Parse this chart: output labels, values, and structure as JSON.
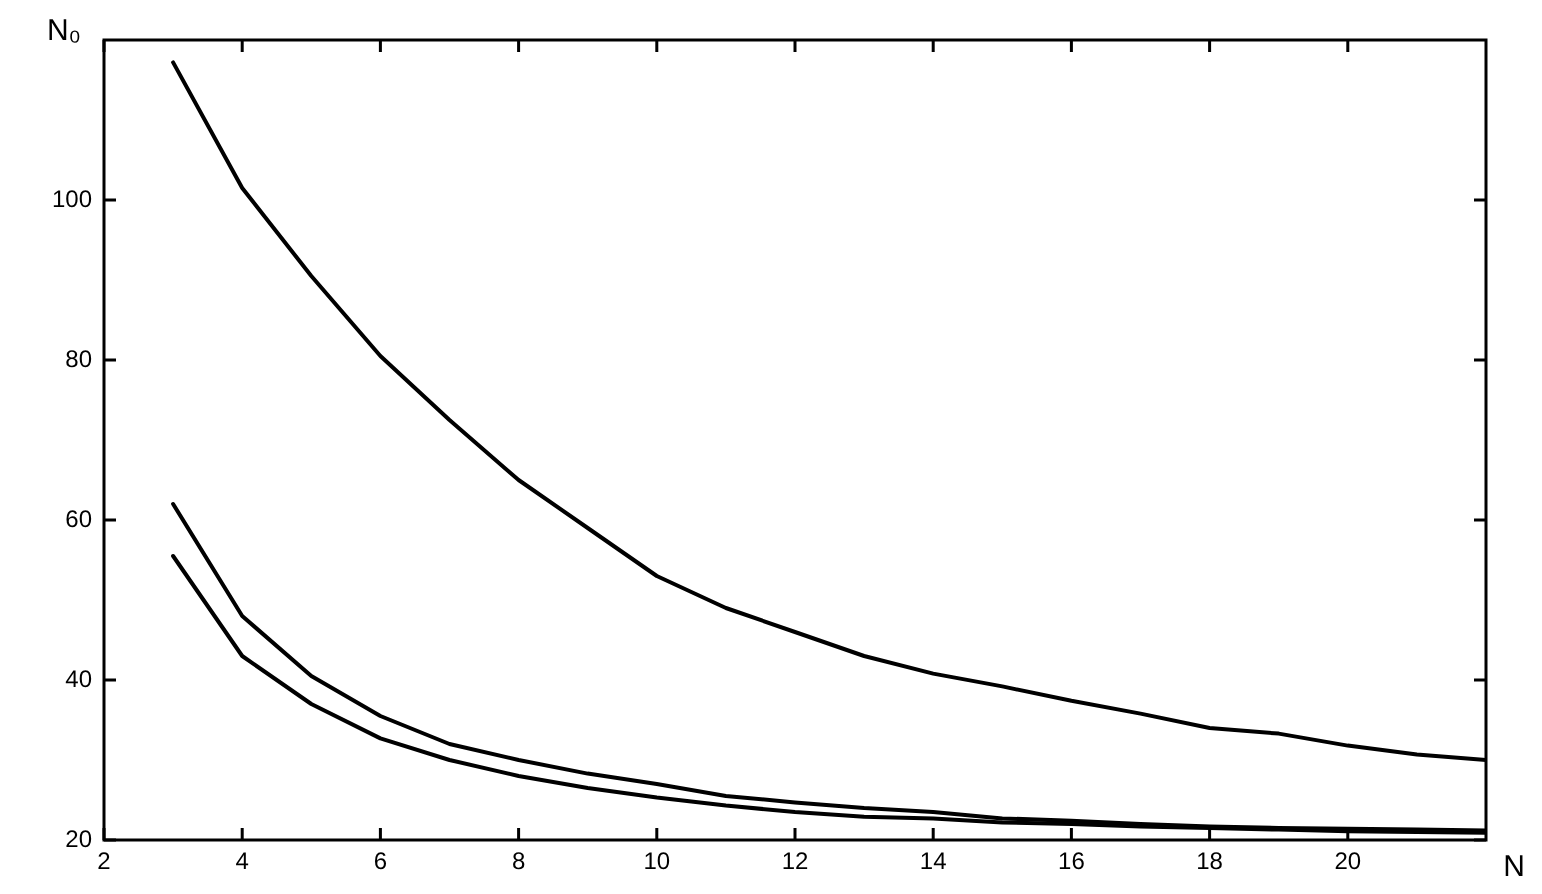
{
  "chart_data": {
    "type": "line",
    "xlabel": "N",
    "ylabel": "N₀",
    "x": [
      3,
      4,
      5,
      6,
      7,
      8,
      9,
      10,
      11,
      12,
      13,
      14,
      15,
      16,
      17,
      18,
      19,
      20,
      21,
      22
    ],
    "series": [
      {
        "color": "#000000",
        "values": [
          117.2,
          101.5,
          90.5,
          80.5,
          72.5,
          65,
          59,
          53,
          49,
          46,
          43,
          40.8,
          39.2,
          37.4,
          35.8,
          34,
          33.3,
          31.8,
          30.7,
          30
        ]
      },
      {
        "color": "#000000",
        "values": [
          62,
          48,
          40.5,
          35.5,
          32,
          30,
          28.3,
          27,
          25.5,
          24.7,
          24,
          23.5,
          22.7,
          22.4,
          22,
          21.7,
          21.5,
          21.4,
          21.3,
          21.2
        ]
      },
      {
        "color": "#000000",
        "values": [
          55.5,
          43,
          37,
          32.7,
          30,
          28,
          26.5,
          25.3,
          24.3,
          23.5,
          22.9,
          22.7,
          22.2,
          22,
          21.7,
          21.5,
          21.3,
          21.1,
          21,
          20.9
        ]
      }
    ],
    "xlim": [
      2,
      22
    ],
    "ylim": [
      20,
      120
    ],
    "xticks": [
      2,
      4,
      6,
      8,
      10,
      12,
      14,
      16,
      18,
      20
    ],
    "yticks": [
      20,
      40,
      60,
      80,
      100
    ],
    "grid": false,
    "legend": false,
    "marker": "none",
    "line_style": "solid"
  }
}
